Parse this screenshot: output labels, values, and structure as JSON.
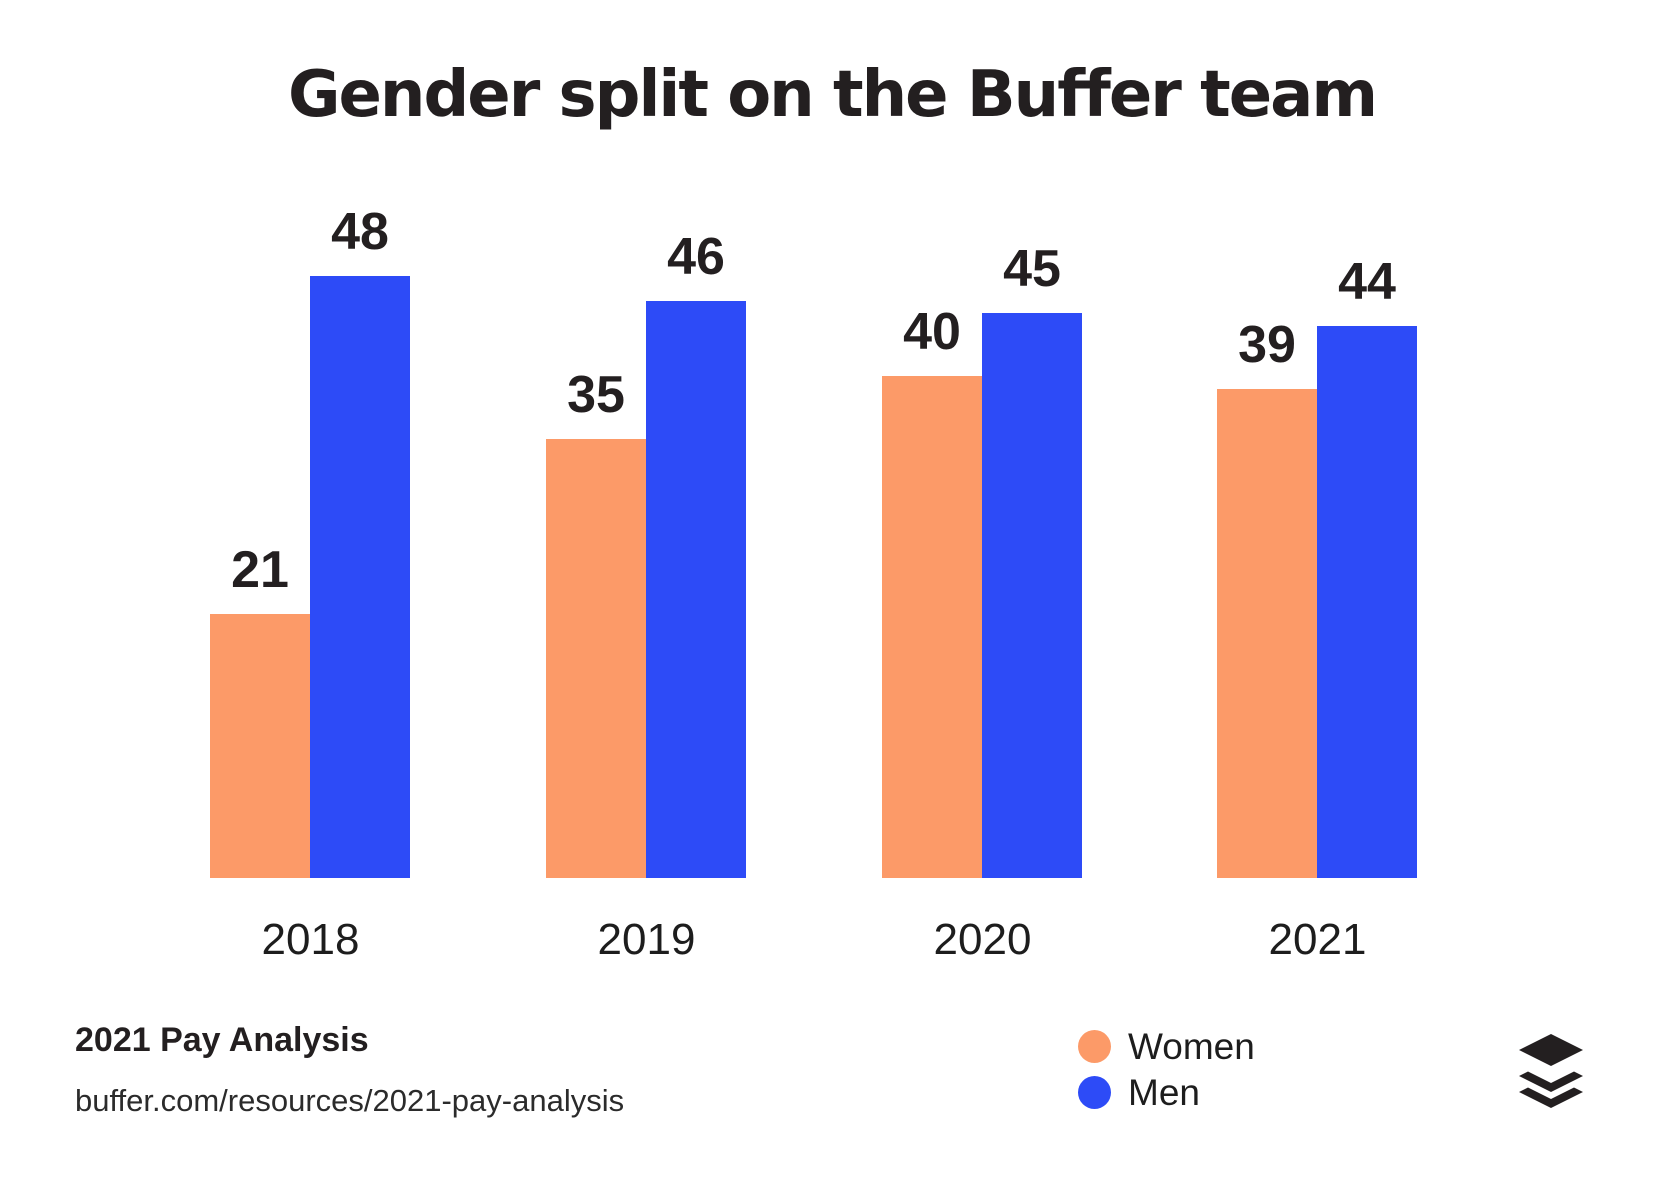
{
  "title": "Gender split on the Buffer team",
  "chart_data": {
    "type": "bar",
    "title": "Gender split on the Buffer team",
    "categories": [
      "2018",
      "2019",
      "2020",
      "2021"
    ],
    "series": [
      {
        "name": "Women",
        "color": "#FC9A68",
        "values": [
          21,
          35,
          40,
          39
        ]
      },
      {
        "name": "Men",
        "color": "#2D4BF7",
        "values": [
          48,
          46,
          45,
          44
        ]
      }
    ],
    "xlabel": "",
    "ylabel": "",
    "ylim": [
      0,
      48
    ],
    "grid": false,
    "axes_hidden": true,
    "value_labels": true,
    "legend_position": "bottom-right",
    "legend_labels": [
      "Women",
      "Men"
    ]
  },
  "footer": {
    "source_title": "2021 Pay Analysis",
    "source_url": "buffer.com/resources/2021-pay-analysis"
  },
  "branding": {
    "logo_icon": "buffer-stacked-layers-logo",
    "logo_color": "#231F20"
  },
  "colors": {
    "background": "#FFFFFF",
    "text": "#231F20",
    "women": "#FC9A68",
    "men": "#2D4BF7"
  }
}
